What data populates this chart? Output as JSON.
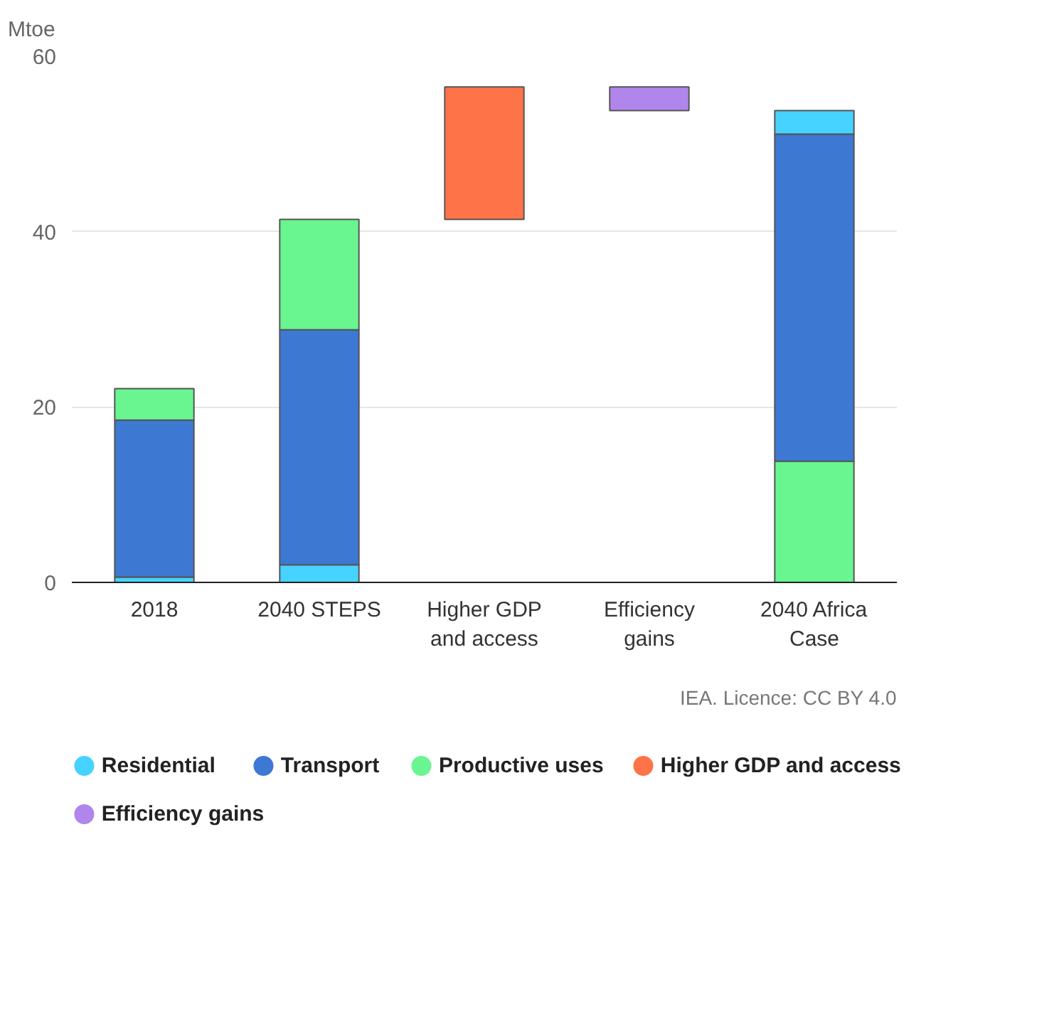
{
  "chart_data": {
    "type": "bar",
    "ylabel": "Mtoe",
    "categories": [
      "2018",
      "2040 STEPS",
      "Higher GDP and access",
      "Efficiency gains",
      "2040 Africa Case"
    ],
    "series": [
      {
        "name": "Residential",
        "color": "#47d3ff",
        "values": [
          0.6,
          2.0,
          null,
          null,
          2.7
        ],
        "base": [
          0,
          0,
          null,
          null,
          51.1
        ]
      },
      {
        "name": "Transport",
        "color": "#3d78d3",
        "values": [
          17.9,
          26.8,
          null,
          null,
          37.3
        ],
        "base": [
          0.6,
          2.0,
          null,
          null,
          13.8
        ]
      },
      {
        "name": "Productive uses",
        "color": "#69f590",
        "values": [
          3.6,
          12.6,
          null,
          null,
          13.8
        ],
        "base": [
          18.5,
          28.8,
          null,
          null,
          0
        ]
      },
      {
        "name": "Higher GDP and access",
        "color": "#ff7348",
        "values": [
          null,
          null,
          15.1,
          null,
          null
        ],
        "base": [
          null,
          null,
          41.4,
          null,
          null
        ]
      },
      {
        "name": "Efficiency gains",
        "color": "#b086ec",
        "values": [
          null,
          null,
          null,
          -2.7,
          null
        ],
        "base": [
          null,
          null,
          null,
          56.5,
          null
        ]
      }
    ],
    "ylim": [
      0,
      60
    ],
    "yticks": [
      0,
      20,
      40,
      60
    ],
    "grid": "y",
    "legend": "bottom",
    "annotations": [
      "IEA. Licence: CC BY 4.0"
    ]
  }
}
